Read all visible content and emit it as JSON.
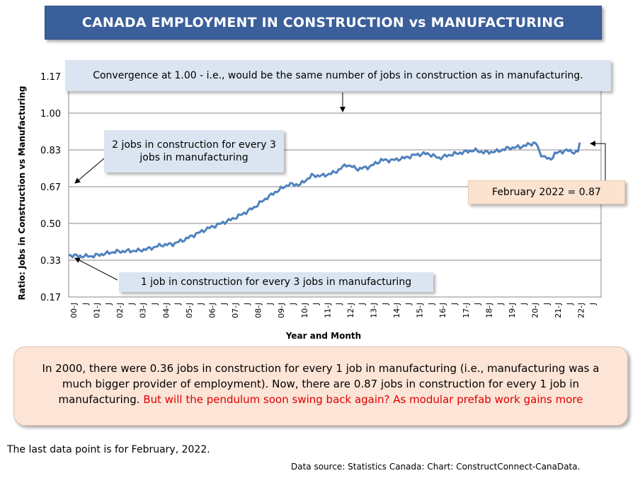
{
  "title": "CANADA EMPLOYMENT IN CONSTRUCTION vs MANUFACTURING",
  "chart_data": {
    "type": "line",
    "ylabel": "Ratio: Jobs in Construction vs Manufacturing",
    "xlabel": "Year and Month",
    "yticks": [
      "1.17",
      "1.00",
      "0.83",
      "0.67",
      "0.50",
      "0.33",
      "0.17"
    ],
    "ylim": [
      0.17,
      1.17
    ],
    "xticks": [
      "00-J",
      "J",
      "01-J",
      "J",
      "02-J",
      "J",
      "03-J",
      "J",
      "04-J",
      "J",
      "05-J",
      "J",
      "06-J",
      "J",
      "07-J",
      "J",
      "08-J",
      "J",
      "09-J",
      "J",
      "10-J",
      "J",
      "11-J",
      "J",
      "12-J",
      "J",
      "13-J",
      "J",
      "14-J",
      "J",
      "15-J",
      "J",
      "16-J",
      "J",
      "17-J",
      "J",
      "18-J",
      "J",
      "19-J",
      "J",
      "20-J",
      "J",
      "21-J",
      "J",
      "22-J",
      "J"
    ],
    "x_start": "2000-01",
    "x_end": "2022-02",
    "series": [
      {
        "color": "#4f81bd",
        "key_points": [
          [
            2000.0,
            0.36
          ],
          [
            2000.5,
            0.355
          ],
          [
            2001.0,
            0.355
          ],
          [
            2001.5,
            0.365
          ],
          [
            2002.0,
            0.375
          ],
          [
            2002.5,
            0.378
          ],
          [
            2003.0,
            0.38
          ],
          [
            2003.5,
            0.39
          ],
          [
            2004.0,
            0.405
          ],
          [
            2004.5,
            0.41
          ],
          [
            2005.0,
            0.43
          ],
          [
            2005.5,
            0.455
          ],
          [
            2006.0,
            0.48
          ],
          [
            2006.5,
            0.5
          ],
          [
            2007.0,
            0.52
          ],
          [
            2007.5,
            0.545
          ],
          [
            2008.0,
            0.575
          ],
          [
            2008.5,
            0.615
          ],
          [
            2009.0,
            0.65
          ],
          [
            2009.5,
            0.68
          ],
          [
            2010.0,
            0.68
          ],
          [
            2010.5,
            0.72
          ],
          [
            2011.0,
            0.72
          ],
          [
            2011.5,
            0.735
          ],
          [
            2012.0,
            0.77
          ],
          [
            2012.5,
            0.75
          ],
          [
            2013.0,
            0.76
          ],
          [
            2013.5,
            0.79
          ],
          [
            2014.0,
            0.79
          ],
          [
            2014.5,
            0.8
          ],
          [
            2015.0,
            0.815
          ],
          [
            2015.5,
            0.82
          ],
          [
            2016.0,
            0.8
          ],
          [
            2016.5,
            0.815
          ],
          [
            2017.0,
            0.825
          ],
          [
            2017.5,
            0.835
          ],
          [
            2018.0,
            0.825
          ],
          [
            2018.5,
            0.83
          ],
          [
            2019.0,
            0.845
          ],
          [
            2019.5,
            0.85
          ],
          [
            2020.0,
            0.865
          ],
          [
            2020.2,
            0.87
          ],
          [
            2020.35,
            0.82
          ],
          [
            2020.8,
            0.79
          ],
          [
            2021.0,
            0.82
          ],
          [
            2021.5,
            0.835
          ],
          [
            2021.9,
            0.825
          ],
          [
            2022.0,
            0.83
          ],
          [
            2022.08,
            0.87
          ]
        ]
      }
    ],
    "grid": true,
    "legend": "none"
  },
  "annotations": {
    "convergence": "Convergence at 1.00 - i.e., would be the same number of jobs in construction as in manufacturing.",
    "two_thirds": "2 jobs in construction for every 3 jobs in manufacturing",
    "one_third": "1 job in construction for every 3 jobs in manufacturing",
    "latest": "February 2022 = 0.87"
  },
  "summary": {
    "text": "In 2000, there were 0.36 jobs in construction for every 1 job in manufacturing (i.e., manufacturing was a much bigger provider of employment). Now, there are 0.87 jobs in construction for every 1 job in manufacturing. ",
    "highlight": "But will the pendulum soon swing back again? As modular prefab work gains more"
  },
  "footnote": "The last data point is for February, 2022.",
  "source": "Data source: Statistics Canada: Chart: ConstructConnect-CanaData."
}
